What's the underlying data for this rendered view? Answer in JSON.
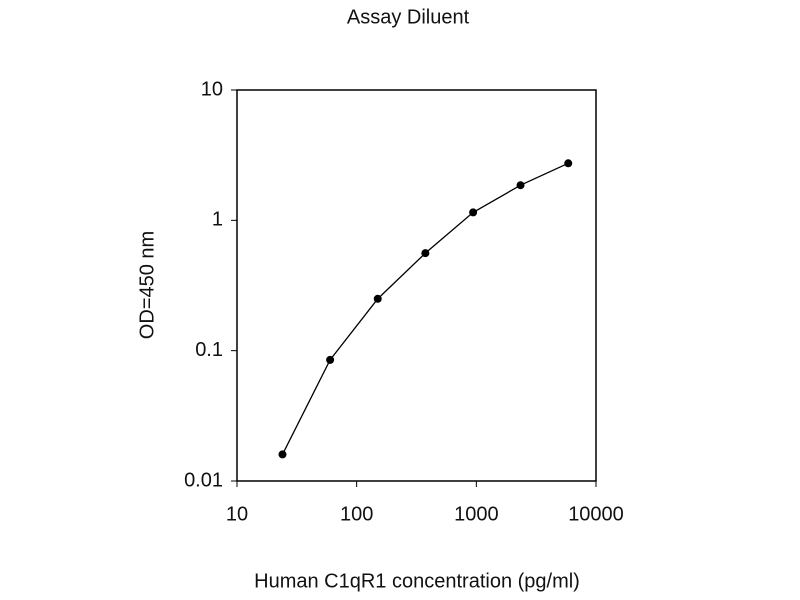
{
  "chart_data": {
    "type": "line",
    "title": "Assay Diluent",
    "x_label": "Human C1qR1 concentration (pg/ml)",
    "y_label": "OD=450 nm",
    "x": [
      24,
      60,
      150,
      375,
      940,
      2340,
      5860
    ],
    "series": [
      {
        "values": [
          0.016,
          0.085,
          0.25,
          0.56,
          1.15,
          1.86,
          2.74
        ],
        "color": "#000000"
      }
    ],
    "xscale": "log",
    "yscale": "log",
    "xlim": [
      10,
      10000
    ],
    "ylim": [
      0.01,
      10
    ],
    "xticks": [
      10,
      100,
      1000,
      10000
    ],
    "yticks": [
      0.01,
      0.1,
      1,
      10
    ],
    "grid": false
  }
}
